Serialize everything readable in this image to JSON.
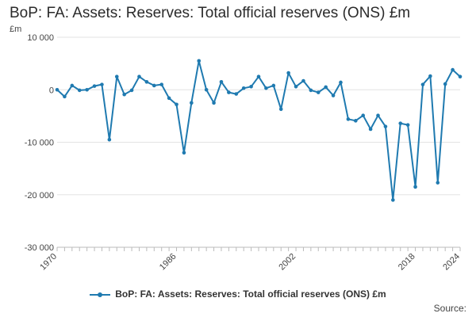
{
  "chart_data": {
    "type": "line",
    "title": "BoP: FA: Assets: Reserves: Total official reserves (ONS) £m",
    "unit_label": "£m",
    "source_label": "Source:",
    "xlim": [
      1970,
      2024
    ],
    "ylim": [
      -30000,
      10000
    ],
    "y_ticks": [
      10000,
      0,
      -10000,
      -20000,
      -30000
    ],
    "y_tick_labels": [
      "10 000",
      "0",
      "-10 000",
      "-20 000",
      "-30 000"
    ],
    "x_tick_labels": [
      "1970",
      "1986",
      "2002",
      "2018",
      "2024"
    ],
    "x_tick_values": [
      1970,
      1986,
      2002,
      2018,
      2024
    ],
    "grid": true,
    "legend_position": "bottom",
    "color": "#1f7ab0",
    "series": [
      {
        "name": "BoP: FA: Assets: Reserves: Total official reserves (ONS) £m",
        "x": [
          1970,
          1971,
          1972,
          1973,
          1974,
          1975,
          1976,
          1977,
          1978,
          1979,
          1980,
          1981,
          1982,
          1983,
          1984,
          1985,
          1986,
          1987,
          1988,
          1989,
          1990,
          1991,
          1992,
          1993,
          1994,
          1995,
          1996,
          1997,
          1998,
          1999,
          2000,
          2001,
          2002,
          2003,
          2004,
          2005,
          2006,
          2007,
          2008,
          2009,
          2010,
          2011,
          2012,
          2013,
          2014,
          2015,
          2016,
          2017,
          2018,
          2019,
          2020,
          2021,
          2022,
          2023,
          2024
        ],
        "values": [
          0,
          -1300,
          800,
          -100,
          0,
          700,
          1000,
          -9500,
          2500,
          -900,
          -100,
          2500,
          1500,
          800,
          1000,
          -1600,
          -2800,
          -12000,
          -2500,
          5500,
          0,
          -2500,
          1500,
          -500,
          -800,
          300,
          600,
          2500,
          300,
          800,
          -3700,
          3200,
          600,
          1700,
          -100,
          -500,
          500,
          -1100,
          1400,
          -5600,
          -5900,
          -4900,
          -7500,
          -4900,
          -7000,
          -21000,
          -6400,
          -6700,
          -18500,
          1000,
          2600,
          -17700,
          1100,
          3800,
          2500
        ]
      }
    ]
  }
}
